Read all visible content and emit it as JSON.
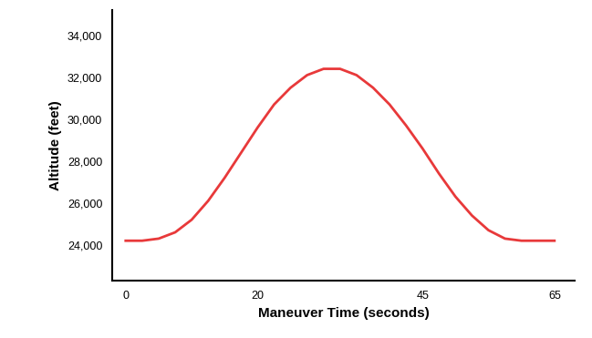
{
  "chart_data": {
    "type": "line",
    "x_label": "Maneuver Time (seconds)",
    "y_label": "Altitude (feet)",
    "x": [
      0,
      2.5,
      5,
      7.5,
      10,
      12.5,
      15,
      17.5,
      20,
      22.5,
      25,
      27.5,
      30,
      32.5,
      35,
      37.5,
      40,
      42.5,
      45,
      47.5,
      50,
      52.5,
      55,
      57.5,
      60,
      62.5,
      65
    ],
    "values": [
      24200,
      24200,
      24300,
      24600,
      25200,
      26100,
      27200,
      28400,
      29600,
      30700,
      31500,
      32100,
      32400,
      32400,
      32100,
      31500,
      30700,
      29700,
      28600,
      27400,
      26300,
      25400,
      24700,
      24300,
      24200,
      24200,
      24200
    ],
    "color": "#e8393a",
    "xlim": [
      -2,
      68
    ],
    "xticks": [
      0,
      20,
      45,
      65
    ],
    "ylim": [
      22300,
      35200
    ],
    "yticks": [
      {
        "value": 24000,
        "label": "24,000"
      },
      {
        "value": 26000,
        "label": "26,000"
      },
      {
        "value": 28000,
        "label": "28,000"
      },
      {
        "value": 30000,
        "label": "30,000"
      },
      {
        "value": 32000,
        "label": "32,000"
      },
      {
        "value": 34000,
        "label": "34,000"
      }
    ],
    "grid": false
  }
}
